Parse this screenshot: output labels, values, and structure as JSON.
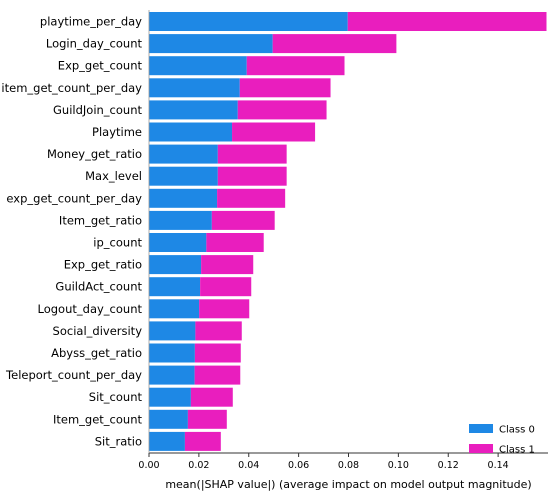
{
  "chart_data": {
    "type": "bar",
    "orientation": "horizontal",
    "stacked": true,
    "xlabel": "mean(|SHAP value|) (average impact on model output magnitude)",
    "xlim": [
      0,
      0.16
    ],
    "xticks": [
      "0.00",
      "0.02",
      "0.04",
      "0.06",
      "0.08",
      "0.10",
      "0.12",
      "0.14"
    ],
    "grid": false,
    "legend_position": "bottom-right",
    "categories": [
      "playtime_per_day",
      "Login_day_count",
      "Exp_get_count",
      "item_get_count_per_day",
      "GuildJoin_count",
      "Playtime",
      "Money_get_ratio",
      "Max_level",
      "exp_get_count_per_day",
      "Item_get_ratio",
      "ip_count",
      "Exp_get_ratio",
      "GuildAct_count",
      "Logout_day_count",
      "Social_diversity",
      "Abyss_get_ratio",
      "Teleport_count_per_day",
      "Sit_count",
      "Item_get_count",
      "Sit_ratio"
    ],
    "series": [
      {
        "name": "Class 0",
        "color": "#1e88e5",
        "values": [
          0.0797,
          0.0496,
          0.0392,
          0.0364,
          0.0356,
          0.0333,
          0.0276,
          0.0276,
          0.0273,
          0.0252,
          0.023,
          0.0209,
          0.0205,
          0.0201,
          0.0186,
          0.0184,
          0.0183,
          0.0168,
          0.0156,
          0.0144
        ]
      },
      {
        "name": "Class 1",
        "color": "#e91ebe",
        "values": [
          0.0797,
          0.0496,
          0.0392,
          0.0364,
          0.0356,
          0.0333,
          0.0276,
          0.0276,
          0.0273,
          0.0252,
          0.023,
          0.0209,
          0.0205,
          0.0201,
          0.0186,
          0.0184,
          0.0183,
          0.0168,
          0.0156,
          0.0144
        ]
      }
    ]
  }
}
